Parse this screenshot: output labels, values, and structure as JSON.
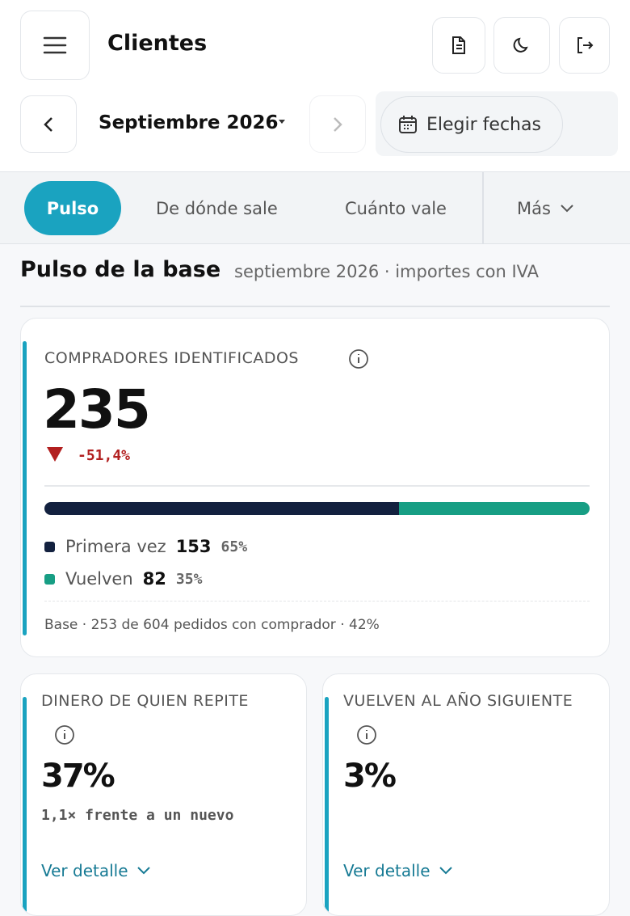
{
  "header": {
    "title": "Clientes",
    "period": "Septiembre 2026",
    "pick_dates": "Elegir fechas"
  },
  "tabs": [
    "Pulso",
    "De dónde sale",
    "Cuánto vale",
    "Más"
  ],
  "section": {
    "title": "Pulso de la base",
    "subtitle": "septiembre 2026 · importes con IVA"
  },
  "main_card": {
    "label": "COMPRADORES IDENTIFICADOS",
    "value": 235,
    "change": "-51,4%",
    "segments": [
      {
        "name": "Primera vez",
        "color": "#13213f",
        "value": 153,
        "share": "65%"
      },
      {
        "name": "Vuelven",
        "color": "#179e84",
        "value": 82,
        "share": "35%"
      }
    ],
    "footer": "Base · 253 de 604 pedidos con comprador · 42%"
  },
  "cards": [
    {
      "label": "DINERO DE QUIEN REPITE",
      "value": "37%",
      "note": "1,1× frente a un nuevo",
      "link": "Ver detalle"
    },
    {
      "label": "VUELVEN AL AÑO SIGUIENTE",
      "value": "3%",
      "link": "Ver detalle"
    }
  ]
}
